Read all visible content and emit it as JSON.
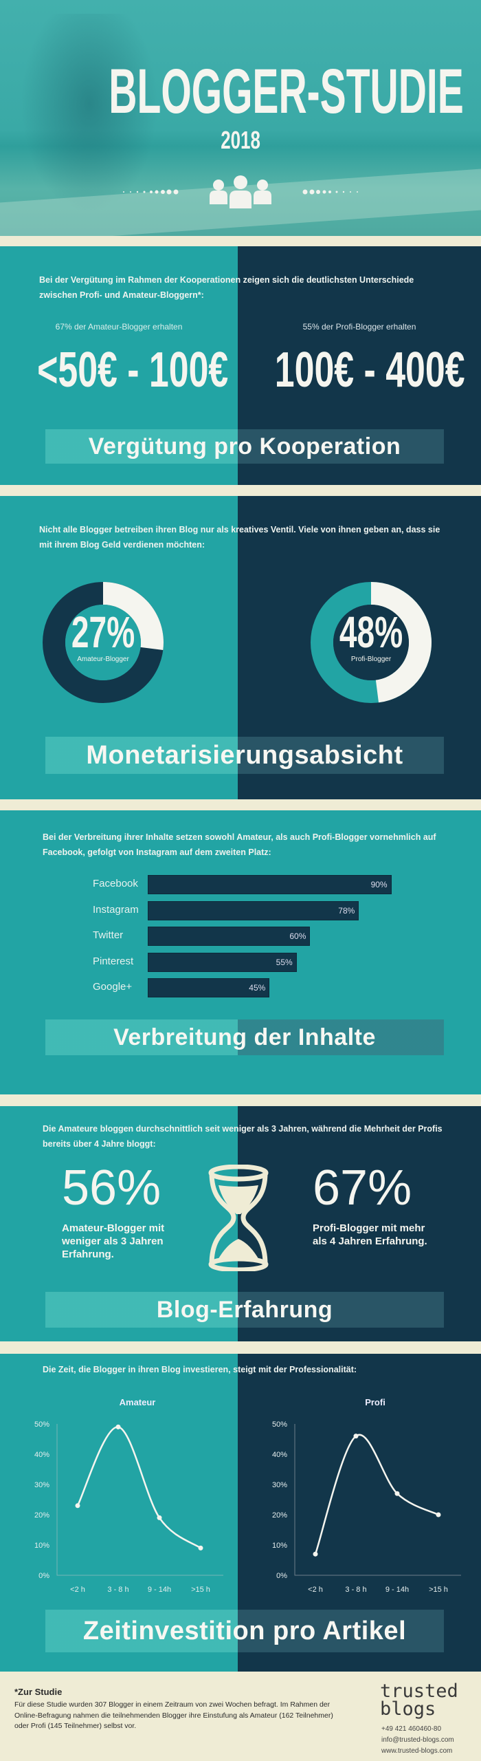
{
  "colors": {
    "teal": "#22a4a4",
    "dark": "#12364a",
    "cream": "#efecd5",
    "white": "#f5f5ef"
  },
  "hero": {
    "title": "BLOGGER-STUDIE",
    "year": "2018",
    "icon": "group-of-people-icon"
  },
  "verguetung": {
    "intro": "Bei der Vergütung im Rahmen der Kooperationen zeigen sich die deutlichsten Unterschiede zwischen Profi- und Amateur-Bloggern*:",
    "amateur_caption": "67% der Amateur-Blogger erhalten",
    "amateur_value": "<50€ - 100€",
    "profi_caption": "55% der Profi-Blogger erhalten",
    "profi_value": "100€ - 400€",
    "label": "Vergütung pro Kooperation"
  },
  "monetarisierung": {
    "intro": "Nicht alle Blogger betreiben ihren Blog nur als kreatives Ventil. Viele von ihnen geben an, dass sie mit ihrem Blog Geld verdienen möchten:",
    "amateur": {
      "value": "27%",
      "percent": 27,
      "label": "Amateur-Blogger"
    },
    "profi": {
      "value": "48%",
      "percent": 48,
      "label": "Profi-Blogger"
    },
    "label": "Monetarisierungsabsicht"
  },
  "verbreitung": {
    "intro": "Bei der Verbreitung ihrer Inhalte setzen sowohl Amateur, als auch Profi-Blogger vornehmlich auf Facebook, gefolgt von Instagram auf dem zweiten Platz:",
    "label": "Verbreitung der Inhalte"
  },
  "erfahrung": {
    "intro": "Die Amateure bloggen durchschnittlich seit weniger als 3 Jahren, während die Mehrheit der Profis bereits über 4 Jahre bloggt:",
    "amateur_value": "56%",
    "amateur_text": "Amateur-Blogger mit weniger als 3 Jahren Erfahrung.",
    "profi_value": "67%",
    "profi_text": "Profi-Blogger mit mehr als 4 Jahren Erfahrung.",
    "icon": "hourglass-icon",
    "label": "Blog-Erfahrung"
  },
  "zeit": {
    "intro": "Die Zeit, die Blogger in ihren Blog investieren, steigt mit der Professionalität:",
    "label": "Zeitinvestition pro Artikel"
  },
  "chart_data": [
    {
      "type": "bar",
      "orientation": "horizontal",
      "categories": [
        "Facebook",
        "Instagram",
        "Twitter",
        "Pinterest",
        "Google+"
      ],
      "values": [
        90,
        78,
        60,
        55,
        45
      ],
      "value_labels": [
        "90%",
        "78%",
        "60%",
        "55%",
        "45%"
      ],
      "xlim": [
        0,
        100
      ]
    },
    {
      "type": "line",
      "title": "Amateur",
      "categories": [
        "<2 h",
        "3 - 8 h",
        "9 - 14h",
        ">15 h"
      ],
      "values": [
        23,
        49,
        19,
        9
      ],
      "ylim": [
        0,
        50
      ],
      "yticks": [
        "0%",
        "10%",
        "20%",
        "30%",
        "40%",
        "50%"
      ],
      "smooth": true
    },
    {
      "type": "line",
      "title": "Profi",
      "categories": [
        "<2 h",
        "3 - 8 h",
        "9 - 14h",
        ">15 h"
      ],
      "values": [
        7,
        46,
        27,
        20
      ],
      "ylim": [
        0,
        50
      ],
      "yticks": [
        "0%",
        "10%",
        "20%",
        "30%",
        "40%",
        "50%"
      ],
      "smooth": true
    }
  ],
  "footer": {
    "heading": "*Zur Studie",
    "text": "Für diese Studie wurden 307 Blogger in einem Zeitraum von zwei Wochen befragt. Im Rahmen der Online-Befragung nahmen die teilnehmenden Blogger ihre Einstufung als Amateur (162 Teilnehmer) oder Profi (145 Teilnehmer) selbst vor.",
    "logo_line1": "trusted",
    "logo_line2": "blogs",
    "phone": "+49 421 460460-80",
    "email": "info@trusted-blogs.com",
    "web": "www.trusted-blogs.com"
  }
}
